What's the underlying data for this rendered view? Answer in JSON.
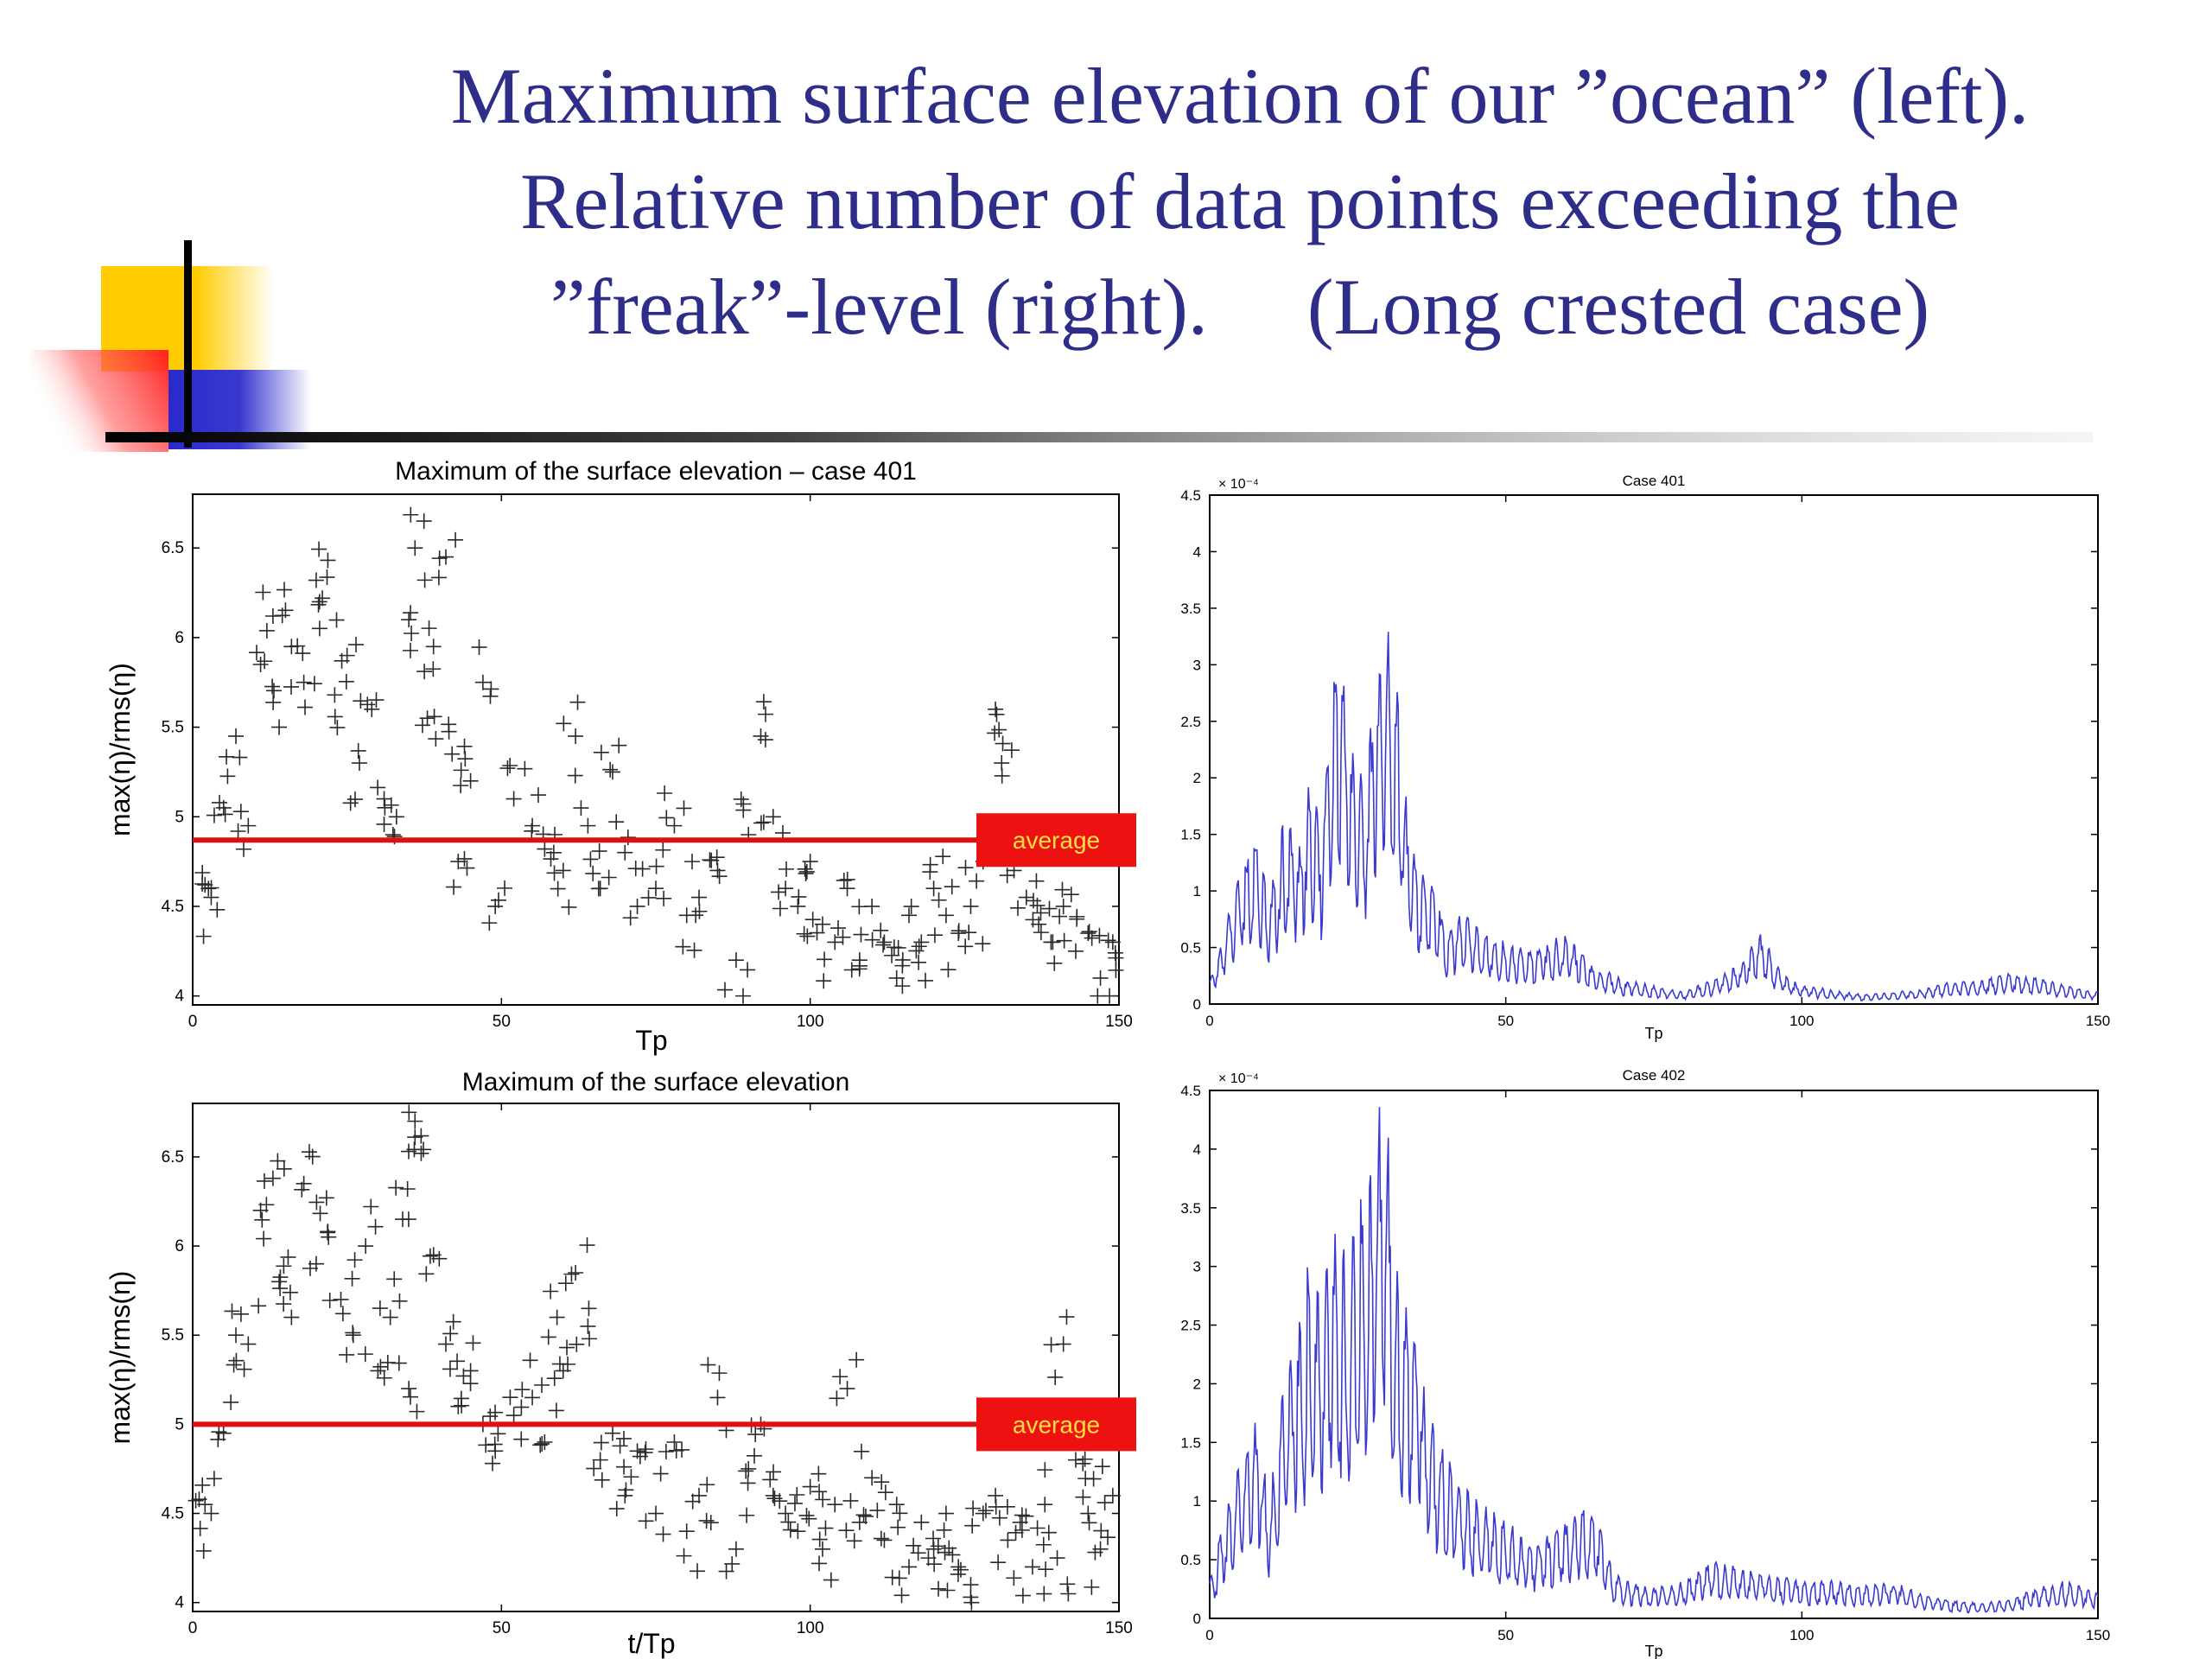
{
  "slide": {
    "title_lines": [
      "Maximum surface elevation of our ”ocean” (left).",
      "Relative number of data points exceeding the",
      "”freak”-level (right).     (Long crested case)"
    ]
  },
  "colors": {
    "title": "#2e2e8a",
    "series_line": "#3a3ad0",
    "average_line": "#e01010",
    "average_box": "#ee1111",
    "average_text": "#ffe040",
    "deco_yellow": "#ffcc00",
    "deco_red": "#ff2020",
    "deco_blue": "#3333cc"
  },
  "chart_data": [
    {
      "id": "scatter-401",
      "type": "scatter",
      "title": "Maximum of the surface elevation – case 401",
      "xlabel": "Tp",
      "ylabel": "max(η)/rms(η)",
      "xlim": [
        0,
        150
      ],
      "ylim": [
        3.95,
        6.8
      ],
      "xticks": [
        0,
        50,
        100,
        150
      ],
      "yticks": [
        4,
        4.5,
        5,
        5.5,
        6,
        6.5
      ],
      "marker": "+",
      "average": 4.87,
      "average_label": "average",
      "seed": 401,
      "points": [
        [
          2,
          4.62
        ],
        [
          3,
          4.55
        ],
        [
          5,
          5.05
        ],
        [
          7,
          5.45
        ],
        [
          9,
          4.95
        ],
        [
          11,
          5.85
        ],
        [
          13,
          6.12
        ],
        [
          14,
          5.5
        ],
        [
          16,
          5.95
        ],
        [
          18,
          5.75
        ],
        [
          20,
          6.32
        ],
        [
          21,
          6.22
        ],
        [
          23,
          5.68
        ],
        [
          25,
          5.9
        ],
        [
          27,
          5.3
        ],
        [
          29,
          5.6
        ],
        [
          31,
          5.1
        ],
        [
          33,
          5.0
        ],
        [
          35,
          6.1
        ],
        [
          36,
          6.5
        ],
        [
          38,
          5.55
        ],
        [
          39,
          5.95
        ],
        [
          41,
          6.45
        ],
        [
          42,
          5.35
        ],
        [
          43,
          4.75
        ],
        [
          45,
          5.2
        ],
        [
          47,
          5.75
        ],
        [
          49,
          4.5
        ],
        [
          52,
          5.1
        ],
        [
          55,
          4.95
        ],
        [
          57,
          4.82
        ],
        [
          60,
          4.7
        ],
        [
          62,
          5.45
        ],
        [
          64,
          4.95
        ],
        [
          66,
          4.6
        ],
        [
          68,
          5.25
        ],
        [
          70,
          4.8
        ],
        [
          72,
          4.5
        ],
        [
          75,
          4.6
        ],
        [
          78,
          4.95
        ],
        [
          80,
          4.45
        ],
        [
          82,
          4.55
        ],
        [
          85,
          4.7
        ],
        [
          88,
          4.2
        ],
        [
          90,
          4.9
        ],
        [
          92,
          5.45
        ],
        [
          94,
          5.0
        ],
        [
          96,
          4.6
        ],
        [
          98,
          4.5
        ],
        [
          100,
          4.75
        ],
        [
          102,
          4.4
        ],
        [
          104,
          4.3
        ],
        [
          106,
          4.6
        ],
        [
          108,
          4.2
        ],
        [
          110,
          4.5
        ],
        [
          112,
          4.3
        ],
        [
          114,
          4.1
        ],
        [
          116,
          4.45
        ],
        [
          118,
          4.3
        ],
        [
          120,
          4.6
        ],
        [
          122,
          4.45
        ],
        [
          124,
          4.35
        ],
        [
          126,
          4.5
        ],
        [
          128,
          4.75
        ],
        [
          130,
          5.6
        ],
        [
          131,
          5.3
        ],
        [
          133,
          4.7
        ],
        [
          135,
          4.55
        ],
        [
          137,
          4.4
        ],
        [
          139,
          4.3
        ],
        [
          141,
          4.5
        ],
        [
          143,
          4.25
        ],
        [
          145,
          4.35
        ],
        [
          147,
          4.1
        ],
        [
          149,
          4.3
        ]
      ]
    },
    {
      "id": "line-401",
      "type": "line",
      "title": "Case 401",
      "xlabel": "Tp",
      "xlim": [
        0,
        150
      ],
      "ylim": [
        0,
        4.5
      ],
      "xticks": [
        0,
        50,
        100,
        150
      ],
      "yticks": [
        0,
        0.5,
        1,
        1.5,
        2,
        2.5,
        3,
        3.5,
        4,
        4.5
      ],
      "ytick_labels": [
        "0",
        "0.5",
        "1",
        "1.5",
        "2",
        "2.5",
        "3",
        "3.5",
        "4",
        "4.5"
      ],
      "y_multiplier": "× 10⁻⁴",
      "seed": 1401,
      "series": [
        {
          "x": [
            0,
            2,
            5,
            8,
            10,
            13,
            15,
            17,
            19,
            20,
            22,
            24,
            26,
            28,
            30,
            32,
            33,
            35,
            38,
            40,
            43,
            46,
            50,
            55,
            60,
            65,
            68,
            70,
            75,
            80,
            85,
            90,
            93,
            95,
            97,
            100,
            105,
            110,
            115,
            120,
            125,
            130,
            135,
            140,
            145,
            150
          ],
          "y": [
            0.2,
            0.5,
            1.1,
            1.4,
            0.9,
            1.6,
            1.3,
            1.9,
            1.5,
            2.3,
            3.1,
            2.2,
            1.8,
            2.8,
            3.2,
            2.6,
            1.8,
            1.1,
            1.0,
            0.6,
            0.8,
            0.6,
            0.5,
            0.45,
            0.6,
            0.3,
            0.25,
            0.2,
            0.15,
            0.1,
            0.2,
            0.35,
            0.6,
            0.4,
            0.25,
            0.15,
            0.12,
            0.08,
            0.1,
            0.12,
            0.18,
            0.2,
            0.25,
            0.22,
            0.15,
            0.1
          ]
        }
      ]
    },
    {
      "id": "scatter-402",
      "type": "scatter",
      "title": "Maximum of the surface elevation",
      "xlabel": "t/Tp",
      "ylabel": "max(η)/rms(η)",
      "xlim": [
        0,
        150
      ],
      "ylim": [
        3.95,
        6.8
      ],
      "xticks": [
        0,
        50,
        100,
        150
      ],
      "yticks": [
        4,
        4.5,
        5,
        5.5,
        6,
        6.5
      ],
      "marker": "+",
      "average": 5.0,
      "average_label": "average",
      "seed": 402,
      "points": [
        [
          2,
          4.55
        ],
        [
          3,
          4.5
        ],
        [
          5,
          4.95
        ],
        [
          7,
          5.5
        ],
        [
          9,
          5.45
        ],
        [
          11,
          6.2
        ],
        [
          13,
          6.38
        ],
        [
          14,
          5.8
        ],
        [
          16,
          5.6
        ],
        [
          18,
          6.35
        ],
        [
          20,
          5.9
        ],
        [
          22,
          6.05
        ],
        [
          24,
          5.7
        ],
        [
          26,
          5.5
        ],
        [
          28,
          6.0
        ],
        [
          30,
          5.3
        ],
        [
          32,
          5.6
        ],
        [
          34,
          6.15
        ],
        [
          35,
          5.2
        ],
        [
          36,
          6.7
        ],
        [
          37,
          6.52
        ],
        [
          39,
          5.95
        ],
        [
          41,
          5.45
        ],
        [
          43,
          5.1
        ],
        [
          45,
          5.3
        ],
        [
          47,
          5.0
        ],
        [
          49,
          4.85
        ],
        [
          52,
          5.05
        ],
        [
          55,
          5.15
        ],
        [
          57,
          4.9
        ],
        [
          59,
          5.6
        ],
        [
          60,
          5.3
        ],
        [
          62,
          5.85
        ],
        [
          64,
          5.55
        ],
        [
          66,
          4.8
        ],
        [
          68,
          4.95
        ],
        [
          70,
          4.6
        ],
        [
          72,
          4.85
        ],
        [
          75,
          4.5
        ],
        [
          78,
          4.9
        ],
        [
          80,
          4.4
        ],
        [
          82,
          4.6
        ],
        [
          85,
          5.15
        ],
        [
          88,
          4.3
        ],
        [
          90,
          4.75
        ],
        [
          92,
          5.0
        ],
        [
          94,
          4.6
        ],
        [
          96,
          4.5
        ],
        [
          98,
          4.4
        ],
        [
          100,
          4.65
        ],
        [
          102,
          4.3
        ],
        [
          104,
          4.55
        ],
        [
          106,
          5.2
        ],
        [
          108,
          4.45
        ],
        [
          110,
          4.7
        ],
        [
          112,
          4.35
        ],
        [
          114,
          4.55
        ],
        [
          116,
          4.2
        ],
        [
          118,
          4.45
        ],
        [
          120,
          4.3
        ],
        [
          122,
          4.5
        ],
        [
          124,
          4.2
        ],
        [
          126,
          4.1
        ],
        [
          128,
          4.5
        ],
        [
          130,
          4.6
        ],
        [
          132,
          4.35
        ],
        [
          134,
          4.45
        ],
        [
          136,
          4.2
        ],
        [
          138,
          4.55
        ],
        [
          140,
          4.25
        ],
        [
          141,
          5.45
        ],
        [
          143,
          4.8
        ],
        [
          145,
          4.5
        ],
        [
          147,
          4.3
        ],
        [
          149,
          4.6
        ]
      ]
    },
    {
      "id": "line-402",
      "type": "line",
      "title": "Case 402",
      "xlabel": "Tp",
      "xlim": [
        0,
        150
      ],
      "ylim": [
        0,
        4.5
      ],
      "xticks": [
        0,
        50,
        100,
        150
      ],
      "yticks": [
        0,
        0.5,
        1,
        1.5,
        2,
        2.5,
        3,
        3.5,
        4,
        4.5
      ],
      "ytick_labels": [
        "0",
        "0.5",
        "1",
        "1.5",
        "2",
        "2.5",
        "3",
        "3.5",
        "4",
        "4.5"
      ],
      "y_multiplier": "× 10⁻⁴",
      "seed": 1402,
      "series": [
        {
          "x": [
            0,
            2,
            5,
            8,
            10,
            13,
            15,
            17,
            19,
            21,
            23,
            25,
            27,
            28,
            30,
            32,
            34,
            36,
            38,
            40,
            43,
            46,
            50,
            55,
            60,
            65,
            68,
            70,
            75,
            80,
            85,
            90,
            95,
            100,
            105,
            110,
            115,
            120,
            125,
            130,
            135,
            140,
            145,
            150
          ],
          "y": [
            0.3,
            0.7,
            1.2,
            1.6,
            0.9,
            2.1,
            2.4,
            2.9,
            2.5,
            3.3,
            2.9,
            3.2,
            3.6,
            4.1,
            3.9,
            2.7,
            2.5,
            2.0,
            1.5,
            1.3,
            1.1,
            0.9,
            0.8,
            0.6,
            0.75,
            0.9,
            0.4,
            0.3,
            0.25,
            0.3,
            0.45,
            0.4,
            0.35,
            0.3,
            0.3,
            0.25,
            0.3,
            0.2,
            0.15,
            0.12,
            0.15,
            0.25,
            0.3,
            0.2
          ]
        }
      ]
    }
  ]
}
